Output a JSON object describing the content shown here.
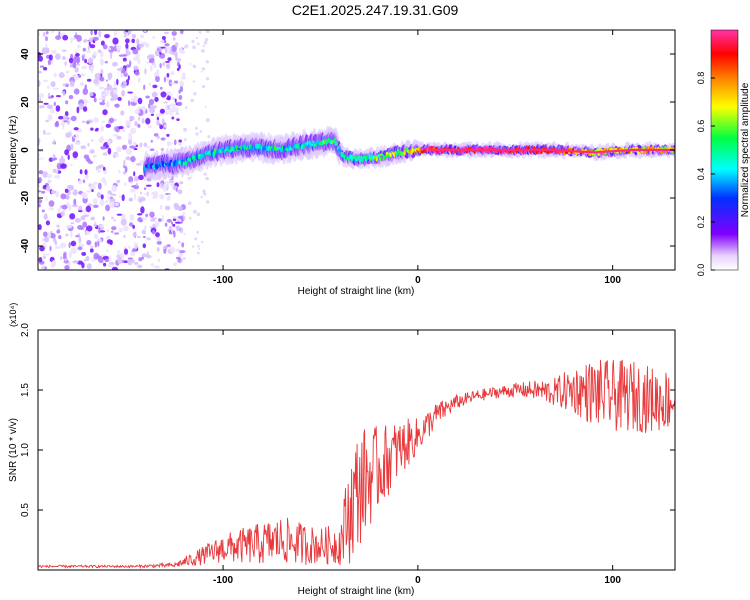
{
  "title": "C2E1.2025.247.19.31.G09",
  "chart_data": [
    {
      "type": "heatmap",
      "xlabel": "Height of straight line (km)",
      "ylabel": "Frequency (Hz)",
      "xlim": [
        -195,
        132
      ],
      "ylim": [
        -50,
        50
      ],
      "xticks": [
        -100,
        0,
        100
      ],
      "yticks": [
        40,
        20,
        0,
        -20,
        -40
      ],
      "colorbar": {
        "label": "Normalized spectral amplitude",
        "range": [
          0,
          1
        ],
        "ticks": [
          "0.0",
          "0.2",
          "0.4",
          "0.6",
          "0.8"
        ],
        "tick_values": [
          0,
          0.2,
          0.4,
          0.6,
          0.8
        ]
      },
      "noise_region_x": [
        -195,
        -120
      ],
      "frequency_trace": [
        {
          "x": -140,
          "y": -7,
          "a": 0.3
        },
        {
          "x": -130,
          "y": -6,
          "a": 0.35
        },
        {
          "x": -120,
          "y": -5,
          "a": 0.4
        },
        {
          "x": -110,
          "y": -2,
          "a": 0.45
        },
        {
          "x": -100,
          "y": 0,
          "a": 0.45
        },
        {
          "x": -90,
          "y": 1,
          "a": 0.45
        },
        {
          "x": -80,
          "y": 1,
          "a": 0.45
        },
        {
          "x": -70,
          "y": 0,
          "a": 0.45
        },
        {
          "x": -60,
          "y": 2,
          "a": 0.45
        },
        {
          "x": -50,
          "y": 3,
          "a": 0.5
        },
        {
          "x": -43,
          "y": 4,
          "a": 0.5
        },
        {
          "x": -38,
          "y": -3,
          "a": 0.45
        },
        {
          "x": -30,
          "y": -4,
          "a": 0.45
        },
        {
          "x": -20,
          "y": -3,
          "a": 0.55
        },
        {
          "x": -10,
          "y": -1,
          "a": 0.6
        },
        {
          "x": 0,
          "y": 0,
          "a": 0.75
        },
        {
          "x": 10,
          "y": 0,
          "a": 0.95
        },
        {
          "x": 40,
          "y": 0,
          "a": 1.0
        },
        {
          "x": 70,
          "y": 0,
          "a": 0.95
        },
        {
          "x": 90,
          "y": -1,
          "a": 0.7
        },
        {
          "x": 110,
          "y": 0,
          "a": 0.75
        },
        {
          "x": 132,
          "y": 0,
          "a": 0.7
        }
      ]
    },
    {
      "type": "line",
      "xlabel": "Height of straight line (km)",
      "ylabel": "SNR (10 * v/v)",
      "y_multiplier": "(x10⁴)",
      "xlim": [
        -195,
        132
      ],
      "ylim": [
        0,
        2.0
      ],
      "xticks": [
        -100,
        0,
        100
      ],
      "yticks": [
        "0.5",
        "1.0",
        "1.5",
        "2.0"
      ],
      "ytick_values": [
        0.5,
        1.0,
        1.5,
        2.0
      ],
      "color": "#e8393c",
      "series": [
        {
          "name": "SNR",
          "x": [
            -195,
            -170,
            -145,
            -125,
            -110,
            -100,
            -90,
            -80,
            -70,
            -60,
            -50,
            -40,
            -35,
            -30,
            -20,
            -10,
            0,
            10,
            20,
            30,
            40,
            50,
            60,
            70,
            80,
            90,
            100,
            110,
            120,
            132
          ],
          "y": [
            0.03,
            0.03,
            0.03,
            0.04,
            0.12,
            0.18,
            0.2,
            0.22,
            0.25,
            0.22,
            0.2,
            0.22,
            0.5,
            0.7,
            0.85,
            1.0,
            1.12,
            1.3,
            1.4,
            1.45,
            1.48,
            1.5,
            1.5,
            1.48,
            1.5,
            1.48,
            1.45,
            1.45,
            1.42,
            1.42
          ],
          "spread": [
            0.01,
            0.01,
            0.01,
            0.02,
            0.08,
            0.12,
            0.15,
            0.18,
            0.2,
            0.18,
            0.15,
            0.18,
            0.45,
            0.5,
            0.35,
            0.25,
            0.15,
            0.1,
            0.06,
            0.05,
            0.05,
            0.06,
            0.08,
            0.12,
            0.2,
            0.28,
            0.3,
            0.3,
            0.28,
            0.25
          ]
        }
      ]
    }
  ]
}
